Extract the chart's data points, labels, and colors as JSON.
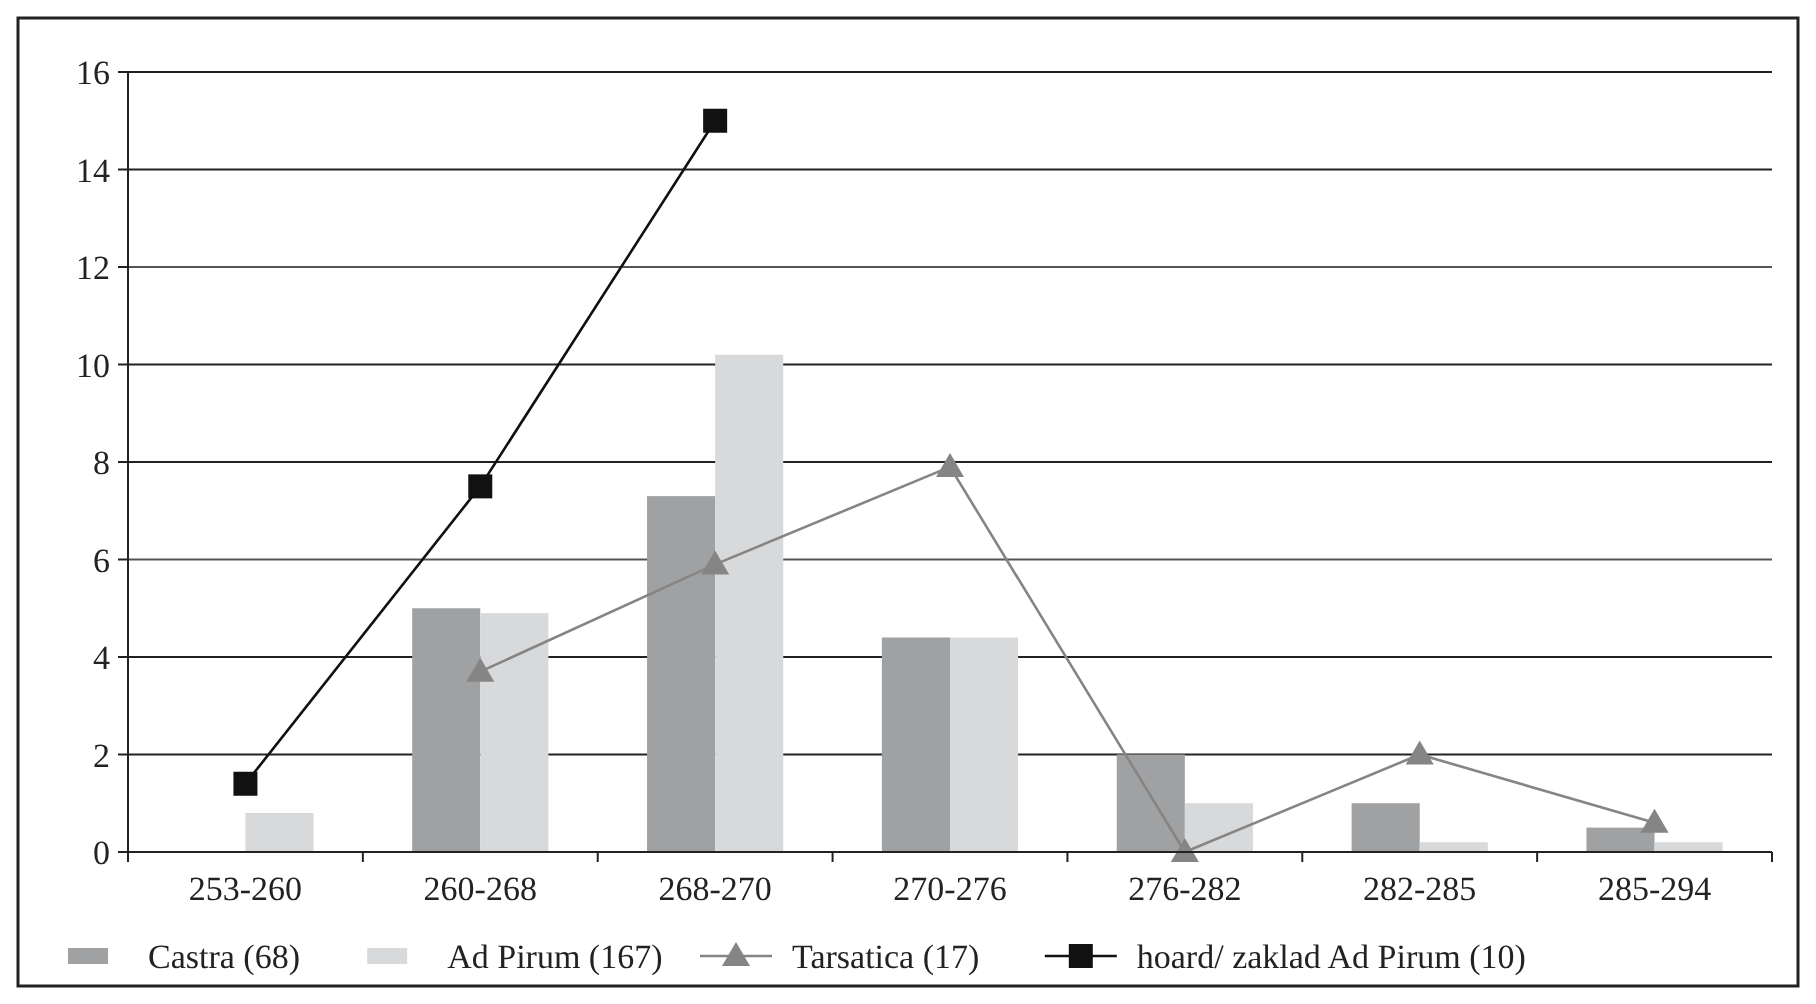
{
  "chart_data": {
    "type": "bar",
    "categories": [
      "253-260",
      "260-268",
      "268-270",
      "270-276",
      "276-282",
      "282-285",
      "285-294"
    ],
    "series": [
      {
        "name": "Castra (68)",
        "color": "#a0a1a3",
        "values": [
          null,
          5.0,
          7.3,
          4.4,
          2.0,
          1.0,
          0.5
        ]
      },
      {
        "name": "Ad Pirum (167)",
        "color": "#d8d9db",
        "values": [
          0.8,
          4.9,
          10.2,
          4.4,
          1.0,
          0.2,
          0.2
        ]
      },
      {
        "name": "Tarsatica (17)",
        "type": "line",
        "marker": "triangle",
        "color": "#858585",
        "values": [
          null,
          3.7,
          5.9,
          7.9,
          0,
          2.0,
          0.6
        ]
      },
      {
        "name": "hoard/ zaklad Ad Pirum (10)",
        "type": "line",
        "marker": "square",
        "color": "#111111",
        "values": [
          1.4,
          7.5,
          15.0,
          null,
          null,
          null,
          null
        ]
      }
    ],
    "ylim": [
      0,
      16
    ],
    "yticks": [
      0,
      2,
      4,
      6,
      8,
      10,
      12,
      14,
      16
    ],
    "grid": "y",
    "legend": "bottom"
  }
}
